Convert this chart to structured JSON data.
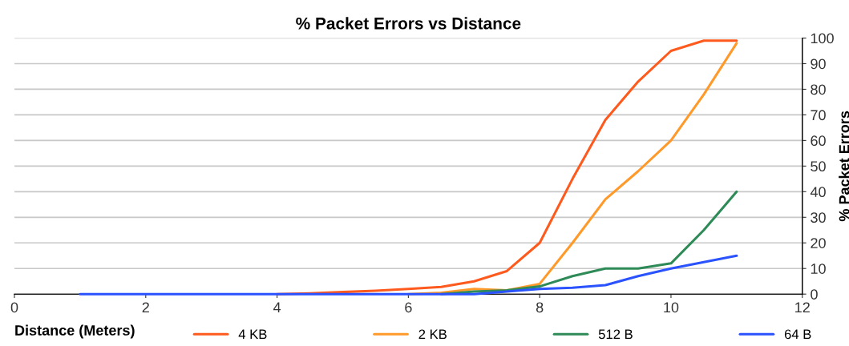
{
  "chart_data": {
    "type": "line",
    "title": "% Packet Errors vs Distance",
    "xlabel": "Distance (Meters)",
    "y2label": "% Packet Errors",
    "x": [
      1,
      1.5,
      2,
      2.5,
      3,
      3.5,
      4,
      4.5,
      5,
      5.5,
      6,
      6.5,
      7,
      7.5,
      8,
      8.5,
      9,
      9.5,
      10,
      10.5,
      11
    ],
    "series": [
      {
        "name": "4 KB",
        "color": "#ff5a1e",
        "axis": "y2",
        "values": [
          null,
          null,
          null,
          null,
          null,
          null,
          0,
          0.3,
          0.8,
          1.3,
          2,
          2.8,
          5,
          9,
          20,
          45,
          68,
          83,
          95,
          99,
          99
        ]
      },
      {
        "name": "2 KB",
        "color": "#ff9a2a",
        "axis": "y2",
        "values": [
          null,
          null,
          null,
          null,
          null,
          null,
          null,
          null,
          null,
          null,
          0,
          0.5,
          2,
          1.5,
          4,
          20,
          37,
          48,
          60,
          78,
          98
        ]
      },
      {
        "name": "512 B",
        "color": "#2e8b57",
        "axis": "y2",
        "values": [
          null,
          null,
          null,
          null,
          null,
          null,
          null,
          null,
          null,
          null,
          null,
          0,
          1,
          1.5,
          3,
          7,
          10,
          10,
          12,
          25,
          40
        ]
      },
      {
        "name": "64 B",
        "color": "#2a52ff",
        "axis": "y2",
        "values": [
          0,
          0,
          0,
          0,
          0,
          0,
          0,
          0,
          0,
          0,
          0,
          0,
          0,
          1,
          2,
          2.5,
          3.5,
          7,
          10,
          12.5,
          15
        ]
      }
    ],
    "xlim": [
      0,
      12
    ],
    "xticks": [
      0,
      2,
      4,
      6,
      8,
      10,
      12
    ],
    "y2lim": [
      0,
      100
    ],
    "y2ticks": [
      0,
      10,
      20,
      30,
      40,
      50,
      60,
      70,
      80,
      90,
      100
    ],
    "grid": "y",
    "legend": "bottom",
    "marker": "none",
    "line_style": "solid"
  }
}
